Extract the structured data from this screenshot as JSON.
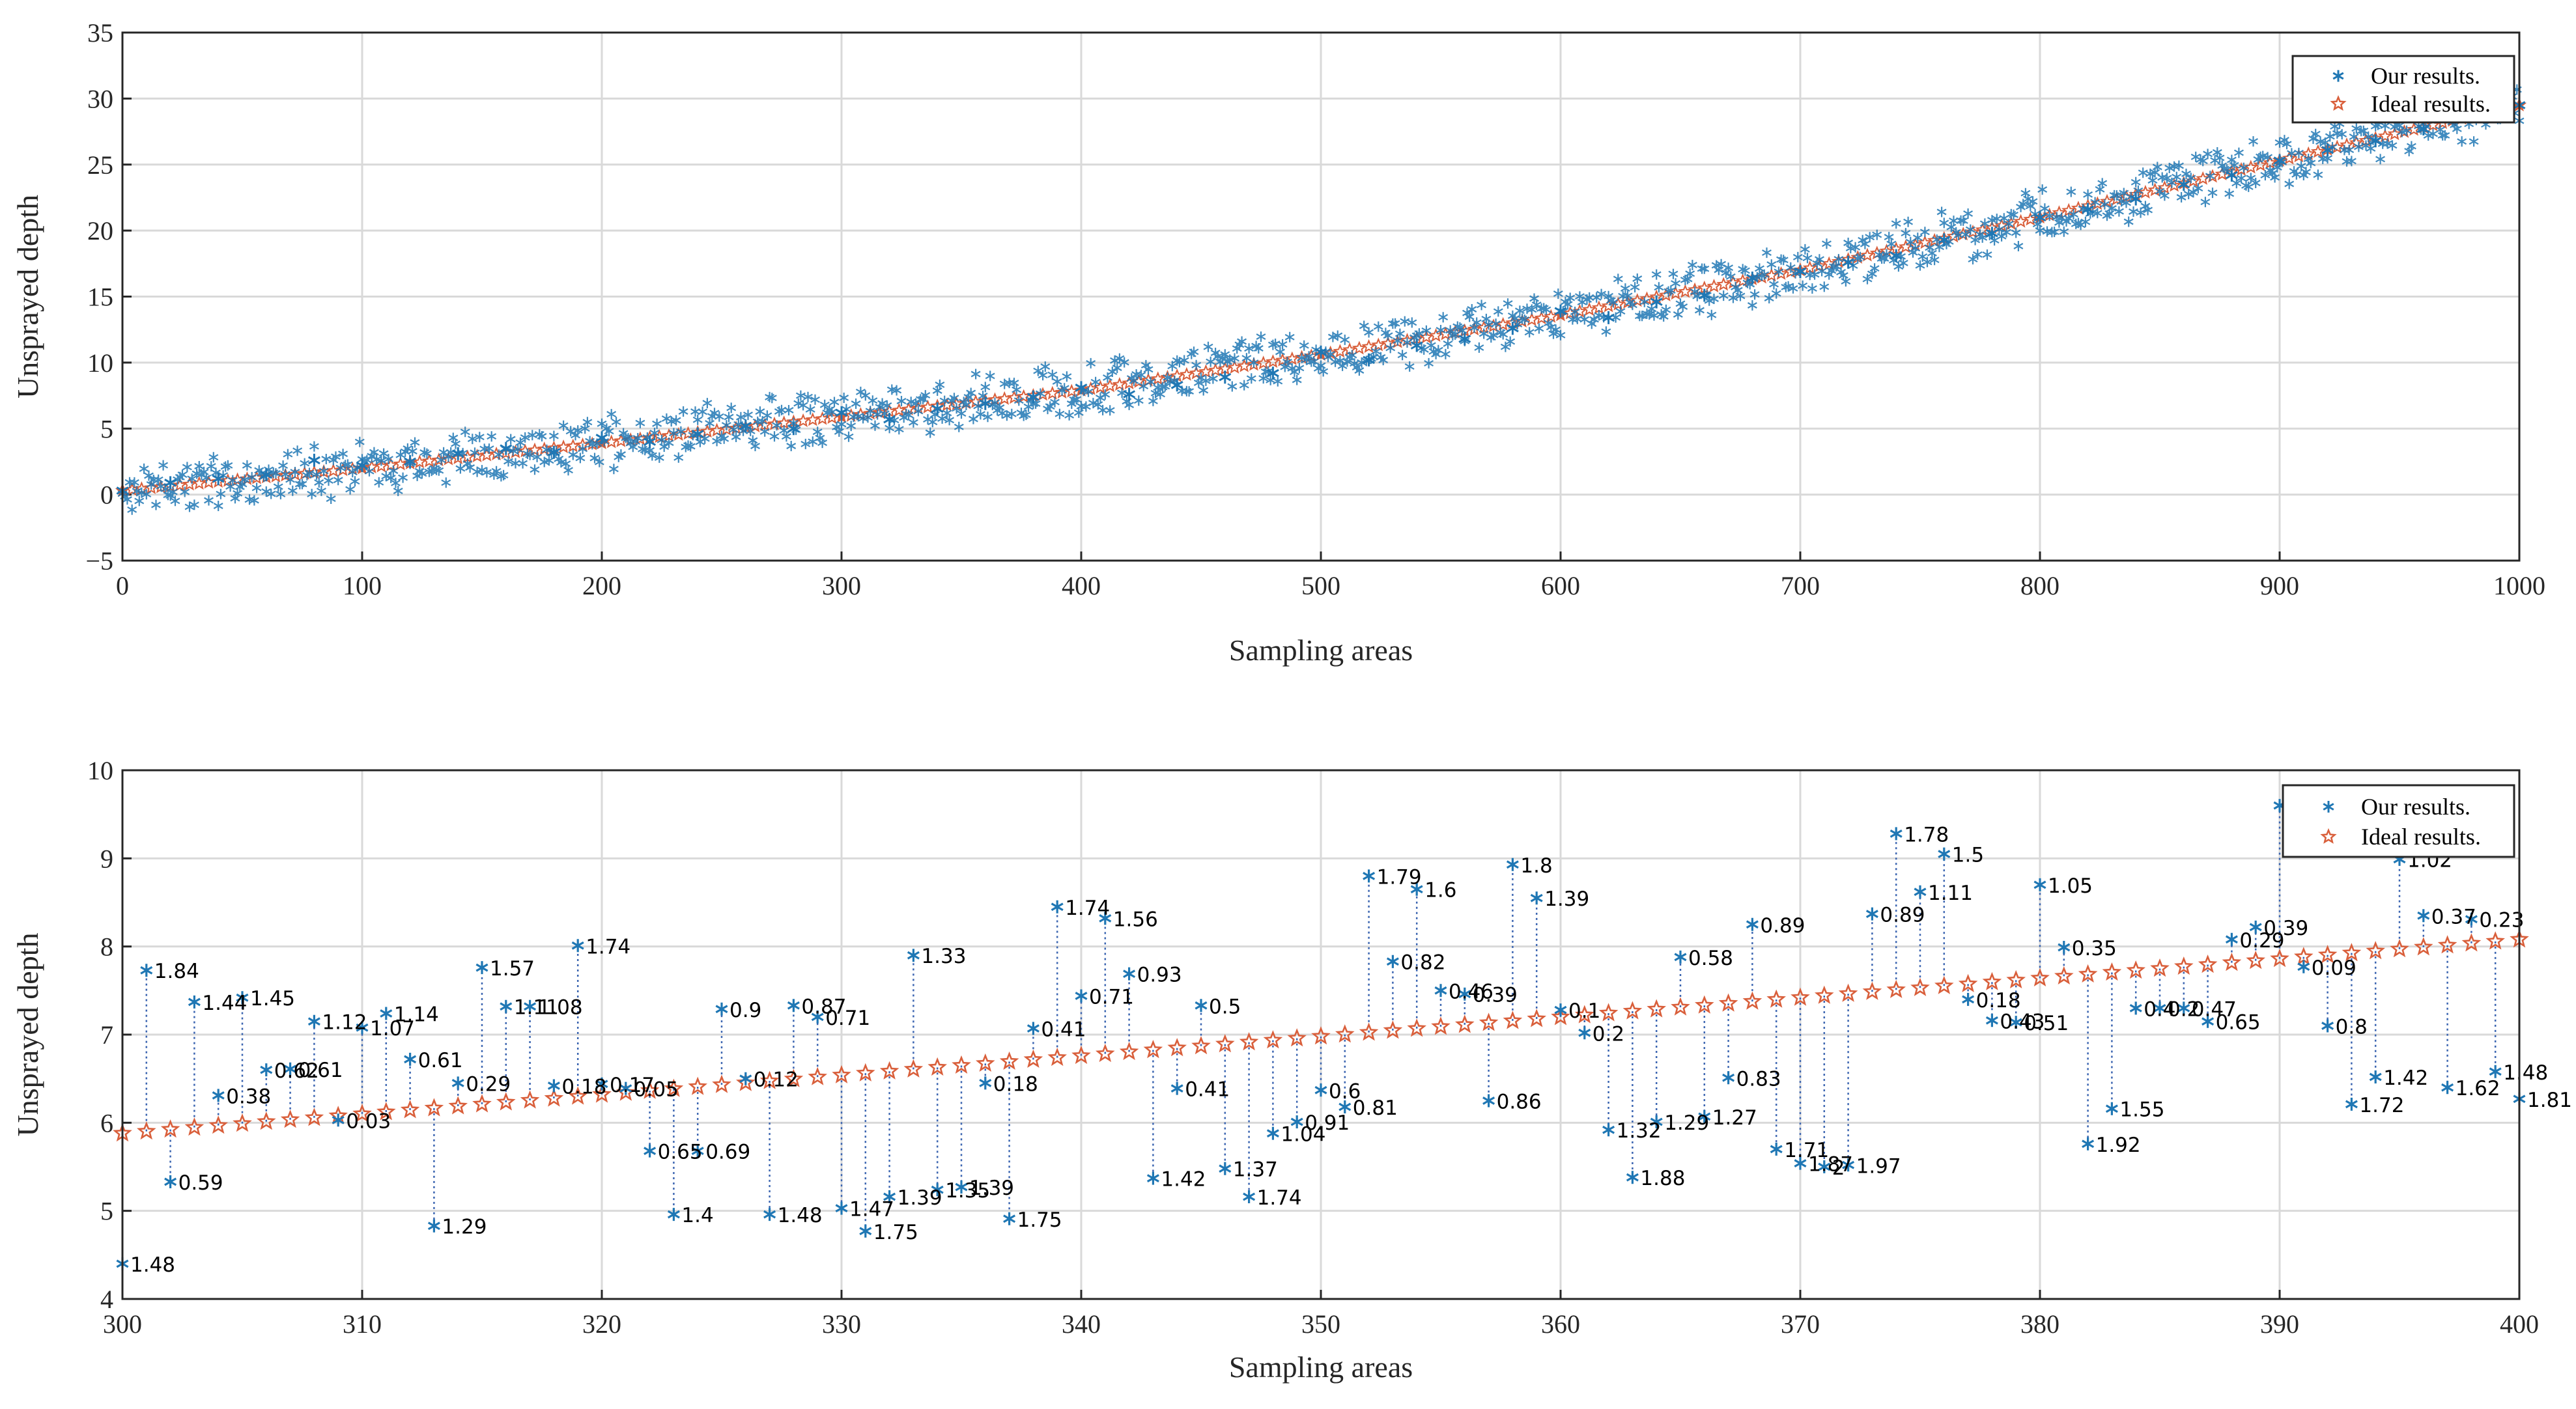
{
  "chart_data": [
    {
      "type": "scatter",
      "xlabel": "Sampling areas",
      "ylabel": "Unsprayed depth",
      "xlim": [
        0,
        1000
      ],
      "ylim": [
        -5,
        35
      ],
      "xticks": [
        0,
        100,
        200,
        300,
        400,
        500,
        600,
        700,
        800,
        900,
        1000
      ],
      "xtick_labels": [
        "0",
        "100",
        "200",
        "300",
        "400",
        "500",
        "600",
        "700",
        "800",
        "900",
        "1000"
      ],
      "yticks": [
        -5,
        0,
        5,
        10,
        15,
        20,
        25,
        30,
        35
      ],
      "ytick_labels": [
        "−5",
        "0",
        "5",
        "10",
        "15",
        "20",
        "25",
        "30",
        "35"
      ],
      "grid": true,
      "legend": {
        "position": "top-right",
        "entries": [
          "Our results.",
          "Ideal results."
        ]
      },
      "series": [
        {
          "name": "Our results.",
          "marker": "*",
          "color": "#1f77b4",
          "x": [
            0,
            20,
            40,
            60,
            80,
            100,
            120,
            140,
            160,
            180,
            200,
            220,
            240,
            260,
            280,
            300,
            320,
            340,
            360,
            380,
            400,
            420,
            440,
            460,
            480,
            500,
            520,
            540,
            560,
            580,
            600,
            620,
            640,
            660,
            680,
            700,
            720,
            740,
            760,
            780,
            800,
            820,
            840,
            860,
            880,
            900,
            920,
            940,
            960,
            980,
            1000
          ],
          "y": [
            0.3,
            0.9,
            1.2,
            1.5,
            2.6,
            2.2,
            2.5,
            3.1,
            3.5,
            3.2,
            4.3,
            4.0,
            4.6,
            5.2,
            5.0,
            6.2,
            5.7,
            6.5,
            6.9,
            7.4,
            8.1,
            7.6,
            8.3,
            8.9,
            9.2,
            10.8,
            10.2,
            11.3,
            11.8,
            12.6,
            13.9,
            13.4,
            14.6,
            15.1,
            16.4,
            16.9,
            17.6,
            18.1,
            19.3,
            19.8,
            21.0,
            21.6,
            22.4,
            23.5,
            24.2,
            25.3,
            26.1,
            26.8,
            27.7,
            28.6,
            29.5
          ]
        },
        {
          "name": "Ideal results.",
          "marker": "star",
          "color": "#d95f3b",
          "x": [
            0,
            100,
            200,
            300,
            400,
            500,
            600,
            700,
            800,
            900,
            1000
          ],
          "y": [
            0.3,
            2.0,
            3.9,
            5.9,
            7.9,
            10.6,
            13.6,
            17.0,
            21.0,
            25.3,
            29.5
          ]
        }
      ]
    },
    {
      "type": "scatter",
      "xlabel": "Sampling areas",
      "ylabel": "Unsprayed depth",
      "xlim": [
        300,
        400
      ],
      "ylim": [
        4,
        10
      ],
      "xticks": [
        300,
        310,
        320,
        330,
        340,
        350,
        360,
        370,
        380,
        390,
        400
      ],
      "xtick_labels": [
        "300",
        "310",
        "320",
        "330",
        "340",
        "350",
        "360",
        "370",
        "380",
        "390",
        "400"
      ],
      "yticks": [
        4,
        5,
        6,
        7,
        8,
        9,
        10
      ],
      "ytick_labels": [
        "4",
        "5",
        "6",
        "7",
        "8",
        "9",
        "10"
      ],
      "grid": true,
      "legend": {
        "position": "top-right",
        "entries": [
          "Our results.",
          "Ideal results."
        ]
      },
      "ideal": {
        "start": 5.88,
        "end": 8.08,
        "step": 1
      },
      "series": [
        {
          "name": "Our results.",
          "x": [
            300,
            301,
            302,
            303,
            304,
            305,
            306,
            307,
            308,
            309,
            310,
            311,
            312,
            313,
            314,
            315,
            316,
            317,
            318,
            319,
            320,
            321,
            322,
            323,
            324,
            325,
            326,
            327,
            328,
            329,
            330,
            331,
            332,
            333,
            334,
            335,
            336,
            337,
            338,
            339,
            340,
            341,
            342,
            343,
            344,
            345,
            346,
            347,
            348,
            349,
            350,
            351,
            352,
            353,
            354,
            355,
            356,
            357,
            358,
            359,
            360,
            361,
            362,
            363,
            364,
            365,
            366,
            367,
            368,
            369,
            370,
            371,
            372,
            373,
            374,
            375,
            376,
            377,
            378,
            379,
            380,
            381,
            382,
            383,
            384,
            385,
            386,
            387,
            388,
            389,
            390,
            391,
            392,
            393,
            394,
            395,
            396,
            397,
            398,
            399,
            400
          ],
          "y": [
            4.4,
            7.73,
            5.33,
            7.37,
            6.31,
            7.42,
            6.6,
            6.61,
            7.15,
            6.03,
            7.08,
            7.24,
            6.72,
            4.83,
            6.45,
            7.76,
            7.32,
            7.32,
            6.42,
            8.01,
            6.44,
            6.39,
            5.68,
            4.96,
            5.68,
            7.29,
            6.5,
            4.96,
            7.33,
            7.2,
            5.03,
            4.77,
            5.16,
            7.9,
            5.24,
            5.27,
            6.45,
            4.91,
            7.07,
            8.45,
            7.44,
            8.32,
            7.69,
            5.37,
            6.39,
            7.33,
            5.48,
            5.16,
            5.88,
            6.01,
            6.37,
            6.18,
            8.8,
            7.83,
            8.65,
            7.5,
            7.46,
            6.25,
            8.93,
            8.55,
            7.28,
            7.02,
            5.92,
            5.38,
            6.01,
            7.88,
            6.07,
            6.51,
            8.25,
            5.7,
            5.54,
            5.5,
            5.52,
            8.37,
            9.28,
            8.62,
            9.05,
            7.4,
            7.16,
            7.14,
            8.7,
            7.99,
            5.76,
            6.16,
            7.3,
            7.3,
            7.3,
            7.15,
            8.08,
            8.22,
            9.6,
            7.77,
            7.1,
            6.21,
            6.52,
            8.99,
            8.35,
            6.4,
            8.31,
            6.58,
            6.27
          ]
        }
      ],
      "labels": [
        "1.48",
        "1.84",
        "0.59",
        "1.44",
        "0.38",
        "1.45",
        "0.62",
        "0.61",
        "1.12",
        "0.03",
        "1.07",
        "1.14",
        "0.61",
        "1.29",
        "0.29",
        "1.57",
        "1.11",
        "1.08",
        "0.18",
        "1.74",
        "0.17",
        "0.05",
        "0.65",
        "1.4",
        "0.69",
        "0.9",
        "0.12",
        "1.48",
        "0.87",
        "0.71",
        "1.47",
        "1.75",
        "1.39",
        "1.33",
        "1.35",
        "1.39",
        "0.18",
        "1.75",
        "0.41",
        "1.74",
        "0.71",
        "1.56",
        "0.93",
        "1.42",
        "0.41",
        "0.5",
        "1.37",
        "1.74",
        "1.04",
        "0.91",
        "0.6",
        "0.81",
        "1.79",
        "0.82",
        "1.6",
        "0.46",
        "0.39",
        "0.86",
        "1.8",
        "1.39",
        "0.1",
        "0.2",
        "1.32",
        "1.88",
        "1.29",
        "0.58",
        "1.27",
        "0.83",
        "0.89",
        "1.71",
        "1.87",
        "2",
        "1.97",
        "0.89",
        "1.78",
        "1.11",
        "1.5",
        "0.18",
        "0.43",
        "0.51",
        "1.05",
        "0.35",
        "1.92",
        "1.55",
        "0.4",
        "0.2",
        "0.47",
        "0.65",
        "0.29",
        "0.39",
        "",
        "0.09",
        "0.8",
        "1.72",
        "1.42",
        "1.02",
        "0.37",
        "1.62",
        "0.23",
        "1.48",
        "1.81"
      ]
    }
  ]
}
